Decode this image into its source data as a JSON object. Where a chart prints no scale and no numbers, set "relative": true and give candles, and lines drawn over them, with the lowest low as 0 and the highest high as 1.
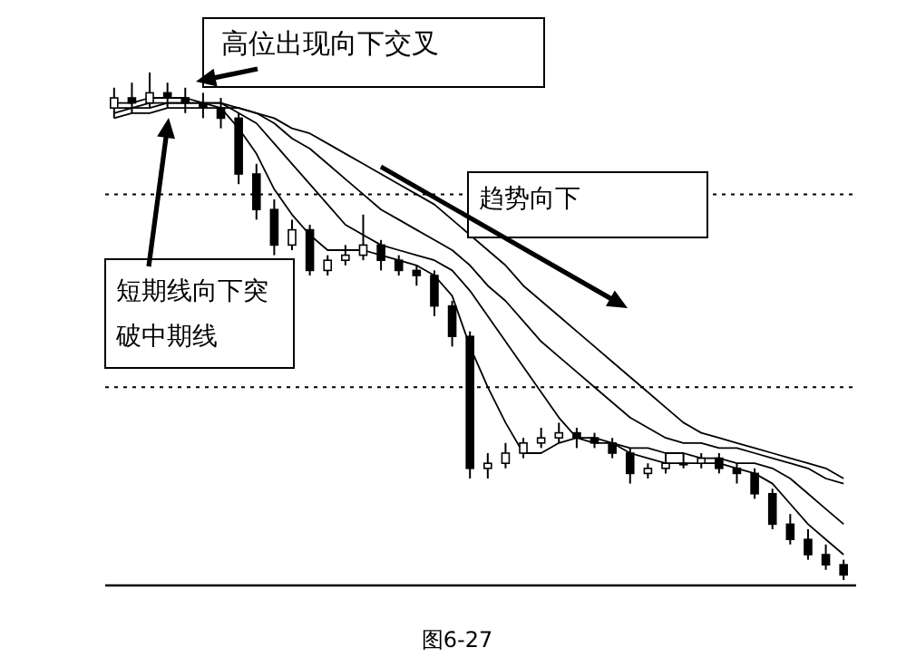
{
  "chart_data": {
    "type": "candlestick",
    "relative": true,
    "categories": [
      null,
      null,
      null,
      null,
      null,
      null,
      null,
      null,
      null,
      null,
      null,
      null,
      null,
      null,
      null,
      null,
      null,
      null,
      null,
      null,
      null,
      null,
      null,
      null,
      null,
      null,
      null,
      null,
      null,
      null,
      null,
      null,
      null,
      null,
      null,
      null,
      null,
      null,
      null,
      null,
      null,
      null
    ],
    "ohlc": [
      [
        0.93,
        0.97,
        0.91,
        0.95
      ],
      [
        0.95,
        0.98,
        0.92,
        0.94
      ],
      [
        0.94,
        1.0,
        0.93,
        0.96
      ],
      [
        0.96,
        0.98,
        0.93,
        0.95
      ],
      [
        0.95,
        0.97,
        0.92,
        0.94
      ],
      [
        0.94,
        0.96,
        0.91,
        0.93
      ],
      [
        0.93,
        0.95,
        0.89,
        0.91
      ],
      [
        0.91,
        0.92,
        0.78,
        0.8
      ],
      [
        0.8,
        0.82,
        0.71,
        0.73
      ],
      [
        0.73,
        0.75,
        0.64,
        0.66
      ],
      [
        0.66,
        0.71,
        0.65,
        0.69
      ],
      [
        0.69,
        0.7,
        0.6,
        0.61
      ],
      [
        0.61,
        0.64,
        0.6,
        0.63
      ],
      [
        0.63,
        0.66,
        0.62,
        0.64
      ],
      [
        0.64,
        0.72,
        0.63,
        0.66
      ],
      [
        0.66,
        0.67,
        0.61,
        0.63
      ],
      [
        0.63,
        0.64,
        0.6,
        0.61
      ],
      [
        0.61,
        0.62,
        0.58,
        0.6
      ],
      [
        0.6,
        0.61,
        0.52,
        0.54
      ],
      [
        0.54,
        0.55,
        0.46,
        0.48
      ],
      [
        0.48,
        0.49,
        0.2,
        0.22
      ],
      [
        0.22,
        0.25,
        0.2,
        0.23
      ],
      [
        0.23,
        0.27,
        0.22,
        0.25
      ],
      [
        0.25,
        0.28,
        0.24,
        0.27
      ],
      [
        0.27,
        0.3,
        0.26,
        0.28
      ],
      [
        0.28,
        0.31,
        0.27,
        0.29
      ],
      [
        0.29,
        0.3,
        0.26,
        0.28
      ],
      [
        0.28,
        0.29,
        0.26,
        0.27
      ],
      [
        0.27,
        0.28,
        0.24,
        0.25
      ],
      [
        0.25,
        0.26,
        0.19,
        0.21
      ],
      [
        0.21,
        0.23,
        0.2,
        0.22
      ],
      [
        0.22,
        0.25,
        0.21,
        0.23
      ],
      [
        0.23,
        0.25,
        0.22,
        0.23
      ],
      [
        0.23,
        0.25,
        0.22,
        0.24
      ],
      [
        0.24,
        0.25,
        0.21,
        0.22
      ],
      [
        0.22,
        0.23,
        0.19,
        0.21
      ],
      [
        0.21,
        0.22,
        0.16,
        0.17
      ],
      [
        0.17,
        0.18,
        0.1,
        0.11
      ],
      [
        0.11,
        0.13,
        0.07,
        0.08
      ],
      [
        0.08,
        0.1,
        0.04,
        0.05
      ],
      [
        0.05,
        0.07,
        0.02,
        0.03
      ],
      [
        0.03,
        0.04,
        0.0,
        0.01
      ]
    ],
    "series": [
      {
        "type": "line",
        "color": "#000000",
        "values": [
          0.94,
          0.94,
          0.95,
          0.95,
          0.95,
          0.94,
          0.93,
          0.89,
          0.84,
          0.77,
          0.72,
          0.68,
          0.65,
          0.65,
          0.65,
          0.64,
          0.63,
          0.62,
          0.6,
          0.56,
          0.46,
          0.38,
          0.31,
          0.25,
          0.25,
          0.27,
          0.28,
          0.28,
          0.27,
          0.25,
          0.24,
          0.23,
          0.23,
          0.23,
          0.23,
          0.22,
          0.21,
          0.19,
          0.15,
          0.11,
          0.08,
          0.05
        ]
      },
      {
        "type": "line",
        "color": "#000000",
        "values": [
          0.93,
          0.93,
          0.94,
          0.94,
          0.94,
          0.94,
          0.94,
          0.92,
          0.9,
          0.86,
          0.82,
          0.78,
          0.74,
          0.7,
          0.68,
          0.66,
          0.65,
          0.64,
          0.63,
          0.61,
          0.57,
          0.52,
          0.47,
          0.42,
          0.37,
          0.32,
          0.28,
          0.27,
          0.27,
          0.26,
          0.26,
          0.25,
          0.25,
          0.24,
          0.24,
          0.23,
          0.23,
          0.22,
          0.2,
          0.17,
          0.14,
          0.11
        ]
      },
      {
        "type": "line",
        "color": "#000000",
        "values": [
          0.92,
          0.93,
          0.93,
          0.94,
          0.94,
          0.94,
          0.94,
          0.93,
          0.92,
          0.9,
          0.87,
          0.85,
          0.82,
          0.79,
          0.76,
          0.73,
          0.71,
          0.69,
          0.67,
          0.65,
          0.62,
          0.58,
          0.55,
          0.51,
          0.47,
          0.44,
          0.41,
          0.38,
          0.35,
          0.32,
          0.3,
          0.28,
          0.27,
          0.27,
          0.26,
          0.26,
          0.25,
          0.24,
          0.23,
          0.22,
          0.2,
          0.19
        ]
      },
      {
        "type": "line",
        "color": "#000000",
        "values": [
          0.91,
          0.92,
          0.92,
          0.93,
          0.93,
          0.93,
          0.93,
          0.93,
          0.92,
          0.91,
          0.89,
          0.88,
          0.86,
          0.84,
          0.82,
          0.8,
          0.78,
          0.76,
          0.74,
          0.71,
          0.68,
          0.65,
          0.62,
          0.58,
          0.55,
          0.52,
          0.49,
          0.46,
          0.43,
          0.4,
          0.37,
          0.34,
          0.31,
          0.29,
          0.28,
          0.27,
          0.26,
          0.25,
          0.24,
          0.23,
          0.22,
          0.2
        ]
      }
    ],
    "ref_lines": [
      {
        "axis": "y",
        "value": 0.76,
        "line_style": "dotted",
        "color": "#000000"
      },
      {
        "axis": "y",
        "value": 0.38,
        "line_style": "dotted",
        "color": "#000000"
      }
    ],
    "annotations": [
      "高位出现向下交叉",
      "趋势向下",
      "短期线向下突破中期线",
      "图6-27"
    ]
  }
}
